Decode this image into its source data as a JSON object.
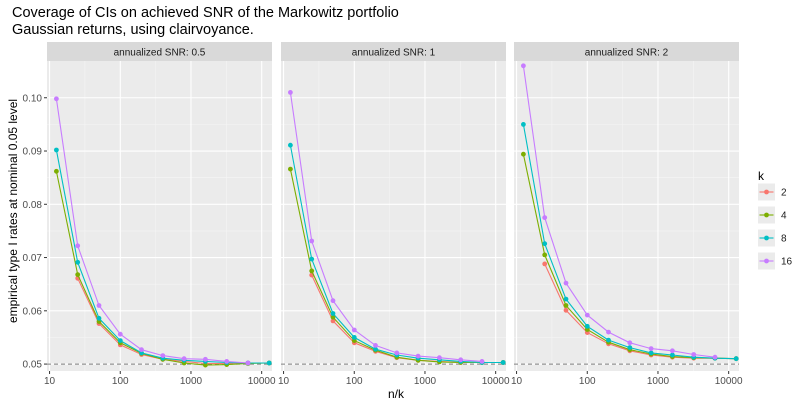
{
  "chart_data": {
    "type": "line",
    "title": "Coverage of CIs on achieved SNR of the Markowitz portfolio",
    "subtitle": "Gaussian returns, using clairvoyance.",
    "xlabel": "n/k",
    "ylabel": "empirical type I rates at nominal 0.05 level",
    "x_scale": "log10",
    "xlim": [
      9.2,
      14000
    ],
    "ylim": [
      0.0487,
      0.1069
    ],
    "x_ticks": [
      10,
      100,
      1000,
      10000
    ],
    "x_tick_labels": [
      "10",
      "100",
      "1000",
      "10000"
    ],
    "y_ticks": [
      0.05,
      0.06,
      0.07,
      0.08,
      0.09,
      0.1
    ],
    "y_tick_labels": [
      "0.05",
      "0.06",
      "0.07",
      "0.08",
      "0.09",
      "0.10"
    ],
    "reference_line": 0.05,
    "legend": {
      "title": "k",
      "position": "right",
      "entries": [
        {
          "label": "2",
          "color": "#f8766d"
        },
        {
          "label": "4",
          "color": "#7cae00"
        },
        {
          "label": "8",
          "color": "#00bfc4"
        },
        {
          "label": "16",
          "color": "#c77cff"
        }
      ]
    },
    "x": [
      12.5,
      25,
      50,
      100,
      200,
      400,
      800,
      1600,
      3200,
      6400,
      12800
    ],
    "panels": [
      {
        "label": "annualized SNR: 0.5",
        "series": [
          {
            "name": "2",
            "values": [
              null,
              0.0661,
              0.0576,
              0.0536,
              0.0518,
              0.0509,
              0.0505,
              0.0501,
              0.0501,
              0.0502,
              0.0502
            ]
          },
          {
            "name": "4",
            "values": [
              0.0862,
              0.0668,
              0.058,
              0.054,
              0.052,
              0.0509,
              0.0502,
              0.0498,
              0.0499,
              0.0501,
              0.0502
            ]
          },
          {
            "name": "8",
            "values": [
              0.0902,
              0.0691,
              0.0586,
              0.0544,
              0.0521,
              0.0511,
              0.0507,
              0.0505,
              0.0503,
              0.0502,
              0.0502
            ]
          },
          {
            "name": "16",
            "values": [
              0.0998,
              0.0722,
              0.061,
              0.0556,
              0.0527,
              0.0516,
              0.051,
              0.0509,
              0.0505,
              0.0502,
              null
            ]
          }
        ]
      },
      {
        "label": "annualized SNR: 1",
        "series": [
          {
            "name": "2",
            "values": [
              null,
              0.0667,
              0.0581,
              0.054,
              0.0524,
              0.0512,
              0.0507,
              0.0505,
              0.0503,
              0.0503,
              0.0503
            ]
          },
          {
            "name": "4",
            "values": [
              0.0866,
              0.0675,
              0.0588,
              0.0544,
              0.0526,
              0.0513,
              0.0507,
              0.0504,
              0.0503,
              0.0503,
              0.0503
            ]
          },
          {
            "name": "8",
            "values": [
              0.0911,
              0.0697,
              0.0595,
              0.055,
              0.0528,
              0.0517,
              0.0511,
              0.0508,
              0.0505,
              0.0503,
              0.0503
            ]
          },
          {
            "name": "16",
            "values": [
              0.101,
              0.0731,
              0.0619,
              0.0564,
              0.0535,
              0.0521,
              0.0515,
              0.0512,
              0.0508,
              0.0505,
              null
            ]
          }
        ]
      },
      {
        "label": "annualized SNR: 2",
        "series": [
          {
            "name": "2",
            "values": [
              null,
              0.0688,
              0.0601,
              0.0559,
              0.0538,
              0.0525,
              0.0517,
              0.0513,
              0.0511,
              0.0511,
              0.051
            ]
          },
          {
            "name": "4",
            "values": [
              0.0894,
              0.0705,
              0.061,
              0.0565,
              0.0541,
              0.0527,
              0.0519,
              0.0514,
              0.0512,
              0.0511,
              0.051
            ]
          },
          {
            "name": "8",
            "values": [
              0.095,
              0.0726,
              0.0622,
              0.0571,
              0.0545,
              0.0531,
              0.0521,
              0.0517,
              0.0513,
              0.0511,
              0.051
            ]
          },
          {
            "name": "16",
            "values": [
              0.106,
              0.0775,
              0.0652,
              0.0592,
              0.056,
              0.054,
              0.0529,
              0.0525,
              0.0518,
              0.0513,
              null
            ]
          }
        ]
      }
    ]
  }
}
